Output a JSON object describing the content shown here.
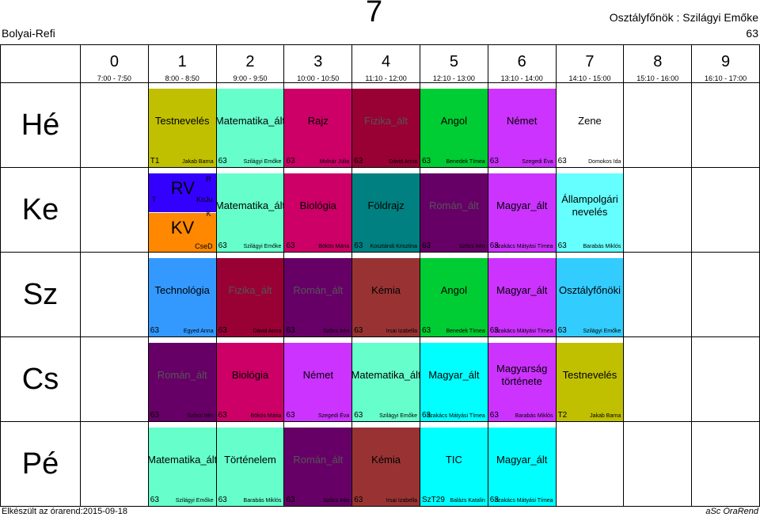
{
  "header": {
    "school": "Bolyai-Refi",
    "class_name": "7",
    "head_teacher": "Osztályfőnök : Szilágyi Emőke",
    "room": "63"
  },
  "periods": [
    {
      "num": "0",
      "time": "7:00 - 7:50"
    },
    {
      "num": "1",
      "time": "8:00 - 8:50"
    },
    {
      "num": "2",
      "time": "9:00 - 9:50"
    },
    {
      "num": "3",
      "time": "10:00 - 10:50"
    },
    {
      "num": "4",
      "time": "11:10 - 12:00"
    },
    {
      "num": "5",
      "time": "12:10 - 13:00"
    },
    {
      "num": "6",
      "time": "13:10 - 14:00"
    },
    {
      "num": "7",
      "time": "14:10 - 15:00"
    },
    {
      "num": "8",
      "time": "15:10 - 16:00"
    },
    {
      "num": "9",
      "time": "16:10 - 17:00"
    }
  ],
  "days": [
    {
      "name": "Hé",
      "lessons": [
        null,
        {
          "subject": "Testnevelés",
          "room": "T1",
          "teacher": "Jakab Barna",
          "color": "#c0c000",
          "text_color": "#000"
        },
        {
          "subject": "Matematika_ált",
          "room": "63",
          "teacher": "Szilágyi Emőke",
          "color": "#66ffcc",
          "text_color": "#000"
        },
        {
          "subject": "Rajz",
          "room": "63",
          "teacher": "Molnár Júlia",
          "color": "#cc0066",
          "text_color": "#000"
        },
        {
          "subject": "Fizika_ált",
          "room": "63",
          "teacher": "Dávid Anna",
          "color": "#990033",
          "text_color": "#555"
        },
        {
          "subject": "Angol",
          "room": "63",
          "teacher": "Benedek Tímea",
          "color": "#00cc33",
          "text_color": "#000"
        },
        {
          "subject": "Német",
          "room": "63",
          "teacher": "Szegedi Éva",
          "color": "#cc33ff",
          "text_color": "#000"
        },
        {
          "subject": "Zene",
          "room": "63",
          "teacher": "Domokos Ida",
          "color": "#ffffff",
          "text_color": "#000"
        },
        null,
        null
      ]
    },
    {
      "name": "Ke",
      "lessons": [
        null,
        {
          "split": true
        },
        {
          "subject": "Matematika_ált",
          "room": "63",
          "teacher": "Szilágyi Emőke",
          "color": "#66ffcc",
          "text_color": "#000"
        },
        {
          "subject": "Biológia",
          "room": "63",
          "teacher": "Bökös Mária",
          "color": "#cc0066",
          "text_color": "#000"
        },
        {
          "subject": "Földrajz",
          "room": "63",
          "teacher": "Kosztándi Krisztina",
          "color": "#008080",
          "text_color": "#000"
        },
        {
          "subject": "Román_ált",
          "room": "63",
          "teacher": "Szőcs Irén",
          "color": "#660066",
          "text_color": "#555"
        },
        {
          "subject": "Magyar_ált",
          "room": "63",
          "teacher": "Szakács Mátyási Tímea",
          "color": "#cc33ff",
          "text_color": "#000"
        },
        {
          "subject": "Állampolgári nevelés",
          "room": "63",
          "teacher": "Barabás Miklós",
          "color": "#66ffff",
          "text_color": "#000"
        },
        null,
        null
      ]
    },
    {
      "name": "Sz",
      "lessons": [
        null,
        {
          "subject": "Technológia",
          "room": "63",
          "teacher": "Egyed Anna",
          "color": "#3399ff",
          "text_color": "#000"
        },
        {
          "subject": "Fizika_ált",
          "room": "63",
          "teacher": "Dávid Anna",
          "color": "#990033",
          "text_color": "#555"
        },
        {
          "subject": "Román_ált",
          "room": "63",
          "teacher": "Szőcs Irén",
          "color": "#660066",
          "text_color": "#555"
        },
        {
          "subject": "Kémia",
          "room": "63",
          "teacher": "Irsai Izabella",
          "color": "#993333",
          "text_color": "#000"
        },
        {
          "subject": "Angol",
          "room": "63",
          "teacher": "Benedek Tímea",
          "color": "#00cc33",
          "text_color": "#000"
        },
        {
          "subject": "Magyar_ált",
          "room": "63",
          "teacher": "Szakács Mátyási Tímea",
          "color": "#cc33ff",
          "text_color": "#000"
        },
        {
          "subject": "Osztályfőnöki",
          "room": "63",
          "teacher": "Szilágyi Emőke",
          "color": "#33ccff",
          "text_color": "#000"
        },
        null,
        null
      ]
    },
    {
      "name": "Cs",
      "lessons": [
        null,
        {
          "subject": "Román_ált",
          "room": "63",
          "teacher": "Szőcs Irén",
          "color": "#660066",
          "text_color": "#555"
        },
        {
          "subject": "Biológia",
          "room": "63",
          "teacher": "Bökös Mária",
          "color": "#cc0066",
          "text_color": "#000"
        },
        {
          "subject": "Német",
          "room": "63",
          "teacher": "Szegedi Éva",
          "color": "#cc33ff",
          "text_color": "#000"
        },
        {
          "subject": "Matematika_ált",
          "room": "63",
          "teacher": "Szilágyi Emőke",
          "color": "#66ffcc",
          "text_color": "#000"
        },
        {
          "subject": "Magyar_ált",
          "room": "63",
          "teacher": "Szakács Mátyási Tímea",
          "color": "#00ffff",
          "text_color": "#000"
        },
        {
          "subject": "Magyarság története",
          "room": "63",
          "teacher": "Barabás Miklós",
          "color": "#cc33ff",
          "text_color": "#000"
        },
        {
          "subject": "Testnevelés",
          "room": "T2",
          "teacher": "Jakab Barna",
          "color": "#c0c000",
          "text_color": "#000"
        },
        null,
        null
      ]
    },
    {
      "name": "Pé",
      "lessons": [
        null,
        {
          "subject": "Matematika_ált",
          "room": "63",
          "teacher": "Szilágyi Emőke",
          "color": "#66ffcc",
          "text_color": "#000"
        },
        {
          "subject": "Történelem",
          "room": "63",
          "teacher": "Barabás Miklós",
          "color": "#66ffcc",
          "text_color": "#000"
        },
        {
          "subject": "Román_ált",
          "room": "63",
          "teacher": "Szőcs Irén",
          "color": "#660066",
          "text_color": "#555"
        },
        {
          "subject": "Kémia",
          "room": "63",
          "teacher": "Irsai Izabella",
          "color": "#993333",
          "text_color": "#000"
        },
        {
          "subject": "TIC",
          "room": "SzT29",
          "teacher": "Balázs Katalin",
          "color": "#00ffff",
          "text_color": "#000"
        },
        {
          "subject": "Magyar_ált",
          "room": "63",
          "teacher": "Szakács Mátyási Tímea",
          "color": "#00ffff",
          "text_color": "#000"
        },
        null,
        null,
        null
      ]
    }
  ],
  "split_lesson": {
    "top": {
      "subject": "RV",
      "color": "#3300ff",
      "room": "T",
      "teacher_code": "KoJu",
      "marker": "R"
    },
    "bottom": {
      "subject": "KV",
      "color": "#ff8800",
      "teacher_code": "CseD",
      "marker": "K"
    }
  },
  "footer": {
    "made": "Elkészült az órarend:2015-09-18",
    "brand": "aSc ÓraRend"
  }
}
